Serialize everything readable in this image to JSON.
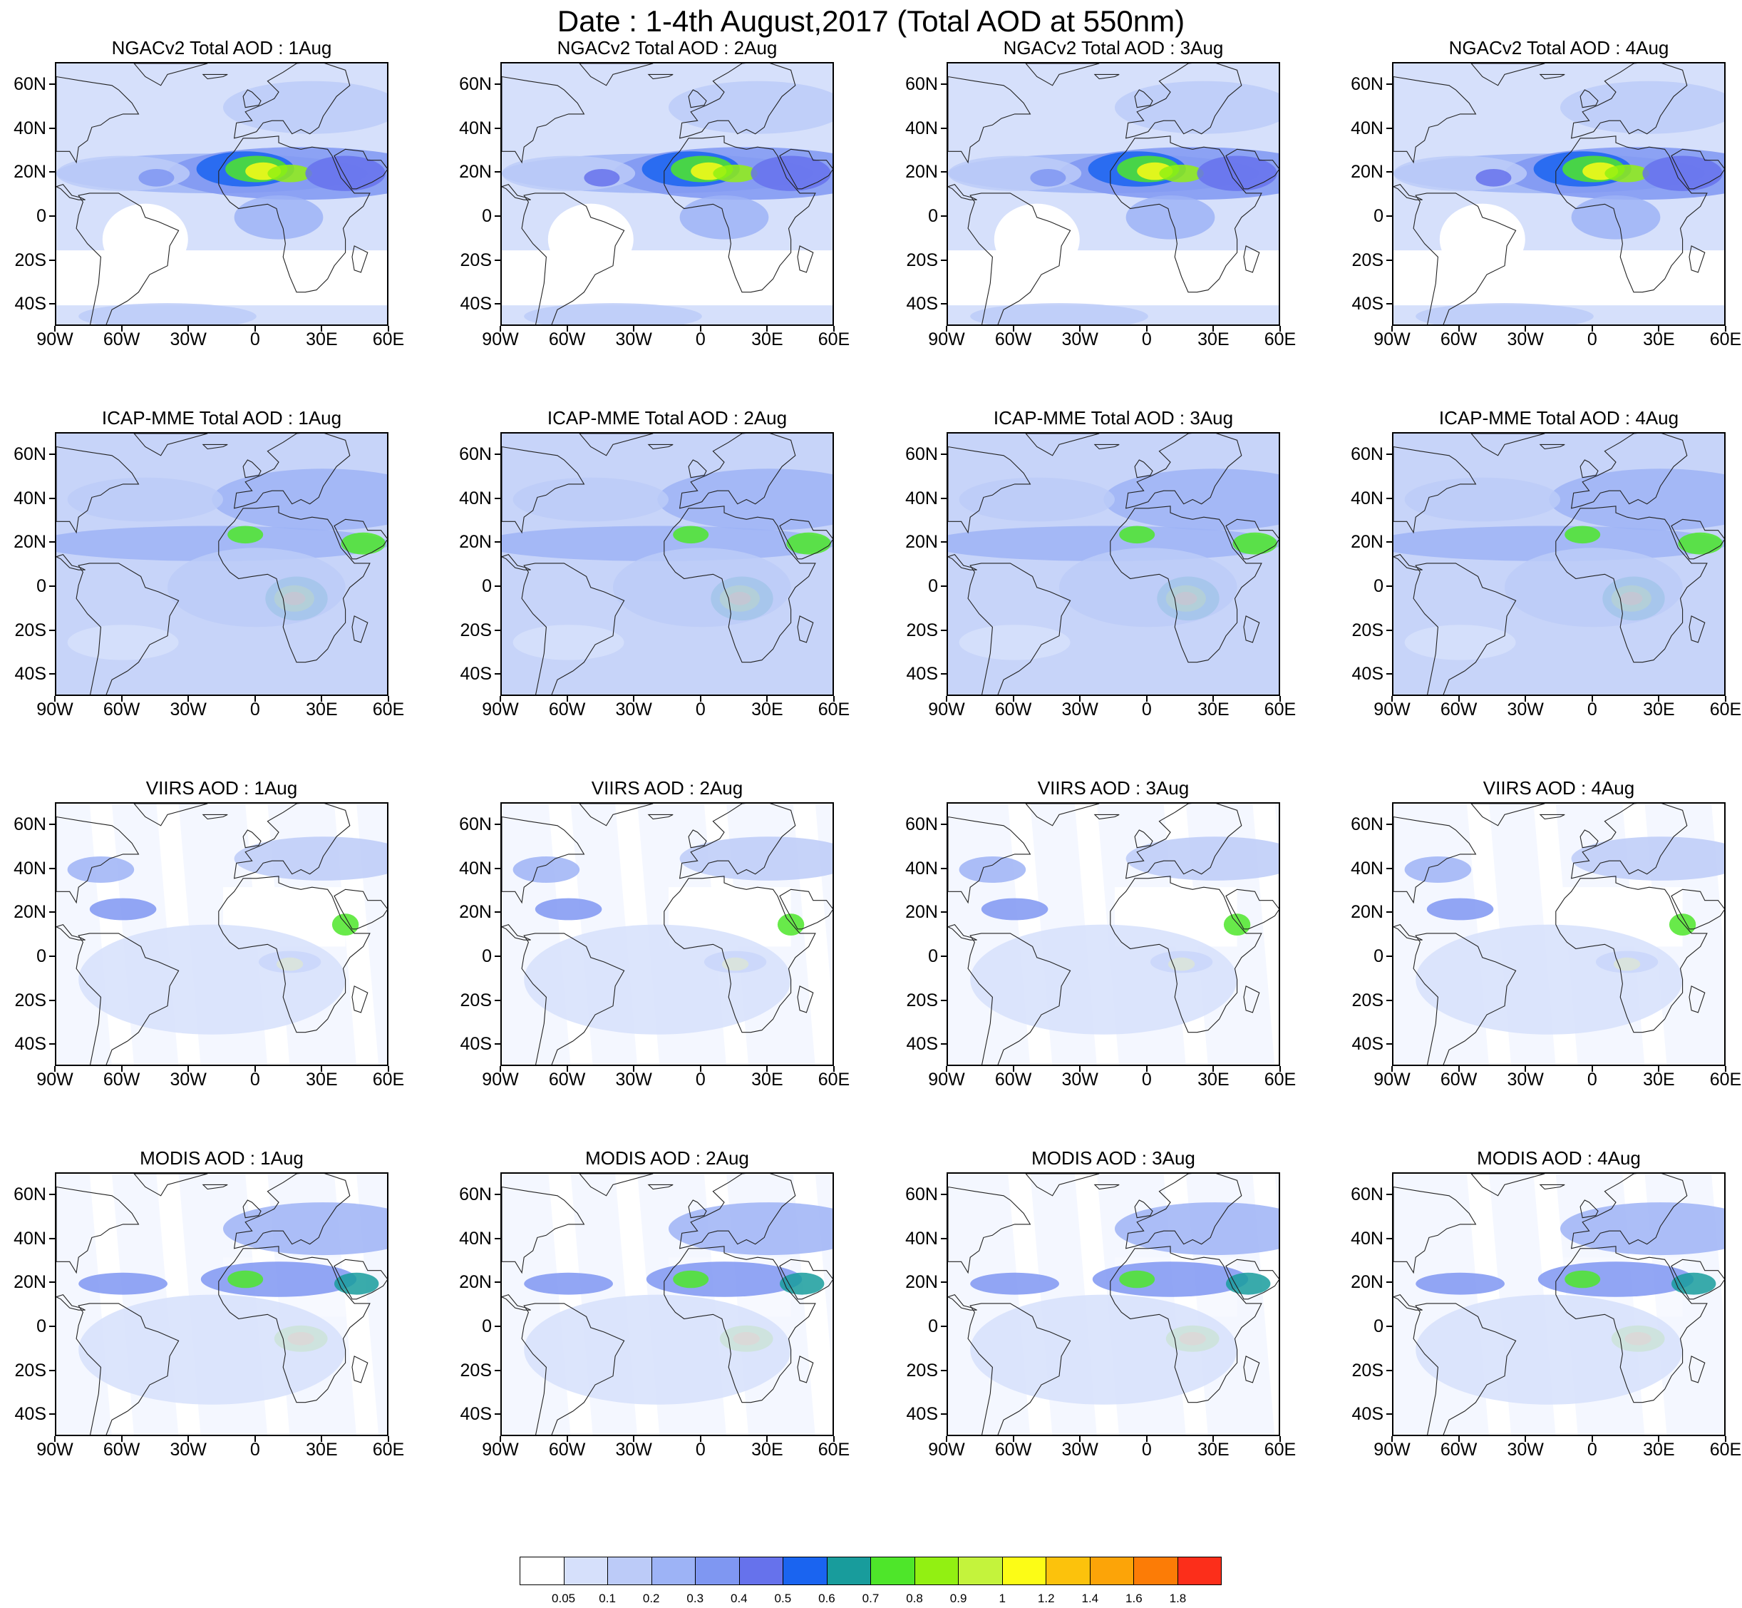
{
  "title": "Date : 1-4th August,2017 (Total AOD at 550nm)",
  "lat_labels": [
    "60N",
    "40N",
    "20N",
    "0",
    "20S",
    "40S"
  ],
  "lon_labels": [
    "90W",
    "60W",
    "30W",
    "0",
    "30E",
    "60E"
  ],
  "panels": [
    {
      "title": "NGACv2 Total AOD : 1Aug",
      "source": "NGACv2"
    },
    {
      "title": "NGACv2 Total AOD : 2Aug",
      "source": "NGACv2"
    },
    {
      "title": "NGACv2 Total AOD : 3Aug",
      "source": "NGACv2"
    },
    {
      "title": "NGACv2 Total AOD : 4Aug",
      "source": "NGACv2"
    },
    {
      "title": "ICAP-MME Total AOD : 1Aug",
      "source": "ICAP-MME"
    },
    {
      "title": "ICAP-MME Total AOD : 2Aug",
      "source": "ICAP-MME"
    },
    {
      "title": "ICAP-MME Total AOD : 3Aug",
      "source": "ICAP-MME"
    },
    {
      "title": "ICAP-MME Total AOD : 4Aug",
      "source": "ICAP-MME"
    },
    {
      "title": "VIIRS AOD : 1Aug",
      "source": "VIIRS"
    },
    {
      "title": "VIIRS AOD : 2Aug",
      "source": "VIIRS"
    },
    {
      "title": "VIIRS AOD : 3Aug",
      "source": "VIIRS"
    },
    {
      "title": "VIIRS AOD : 4Aug",
      "source": "VIIRS"
    },
    {
      "title": "MODIS AOD : 1Aug",
      "source": "MODIS"
    },
    {
      "title": "MODIS AOD : 2Aug",
      "source": "MODIS"
    },
    {
      "title": "MODIS AOD : 3Aug",
      "source": "MODIS"
    },
    {
      "title": "MODIS AOD : 4Aug",
      "source": "MODIS"
    }
  ],
  "colorbar": {
    "labels": [
      "0.05",
      "0.1",
      "0.2",
      "0.3",
      "0.4",
      "0.5",
      "0.6",
      "0.7",
      "0.8",
      "0.9",
      "1",
      "1.2",
      "1.4",
      "1.6",
      "1.8"
    ],
    "colors": [
      "#ffffff",
      "#d6e0fb",
      "#bccbf8",
      "#9db3f6",
      "#7f97f2",
      "#6672ec",
      "#1a64f0",
      "#189c9c",
      "#4ee62a",
      "#92f012",
      "#c4f33c",
      "#fcfc16",
      "#fcc20c",
      "#fca408",
      "#fc7c06",
      "#fc2e1a"
    ]
  },
  "map_extent": {
    "lon_min": -90,
    "lon_max": 60,
    "lat_min": -50,
    "lat_max": 70
  }
}
